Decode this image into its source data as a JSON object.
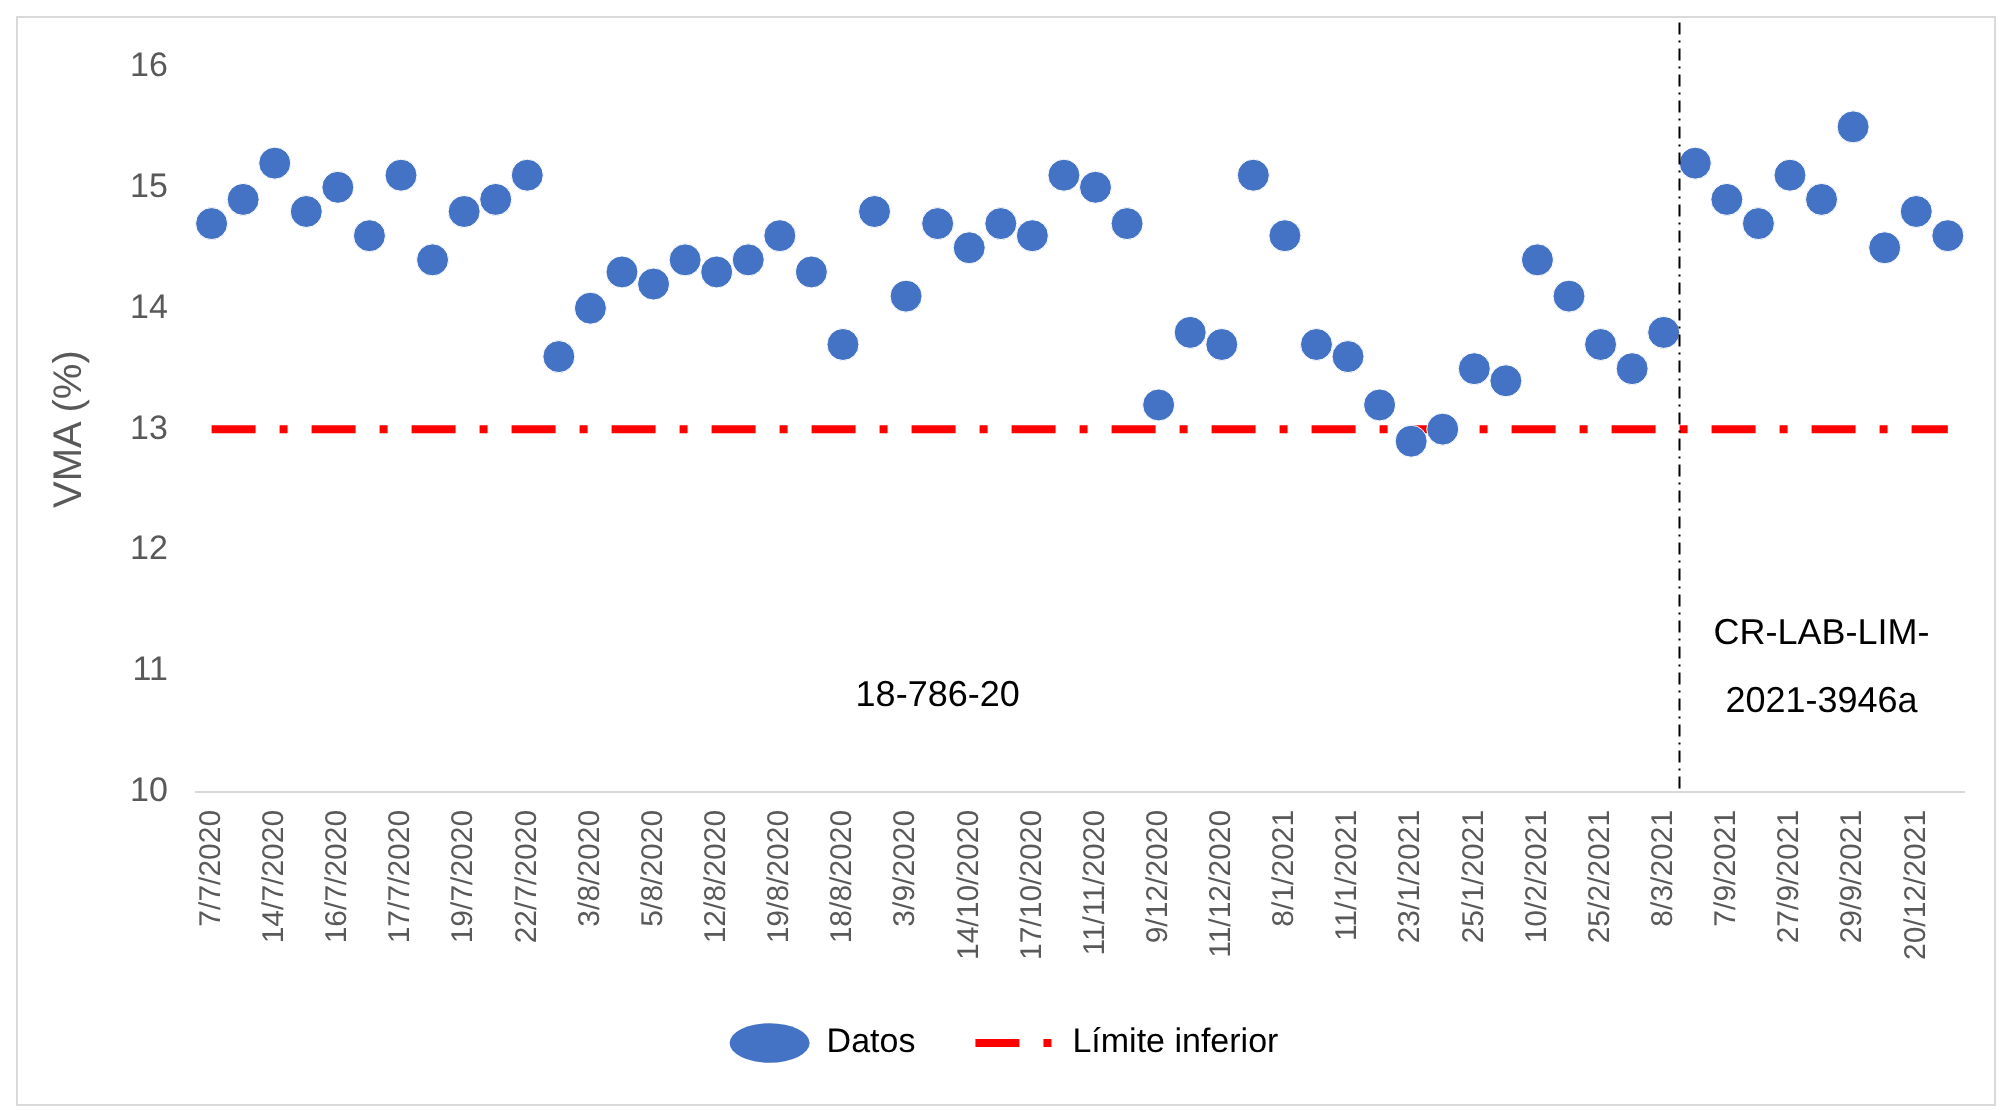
{
  "chart_data": {
    "type": "scatter",
    "ylabel": "VMA (%)",
    "categories": [
      "7/7/2020",
      null,
      "14/7/2020",
      null,
      "16/7/2020",
      null,
      "17/7/2020",
      null,
      "19/7/2020",
      null,
      "22/7/2020",
      null,
      "3/8/2020",
      null,
      "5/8/2020",
      null,
      "12/8/2020",
      null,
      "19/8/2020",
      null,
      "18/8/2020",
      null,
      "3/9/2020",
      null,
      "14/10/2020",
      null,
      "17/10/2020",
      null,
      "11/11/2020",
      null,
      "9/12/2020",
      null,
      "11/12/2020",
      null,
      "8/1/2021",
      null,
      "11/1/2021",
      null,
      "23/1/2021",
      null,
      "25/1/2021",
      null,
      "10/2/2021",
      null,
      "25/2/2021",
      null,
      "8/3/2021",
      null,
      "7/9/2021",
      null,
      "27/9/2021",
      null,
      "29/9/2021",
      null,
      "20/12/2021",
      null
    ],
    "series": [
      {
        "name": "Datos",
        "color": "#4472c4",
        "marker": "circle",
        "values": [
          14.7,
          14.9,
          15.2,
          14.8,
          15.0,
          14.6,
          15.1,
          14.4,
          14.8,
          14.9,
          15.1,
          13.6,
          14.0,
          14.3,
          14.2,
          14.4,
          14.3,
          14.4,
          14.6,
          14.3,
          13.7,
          14.8,
          14.1,
          14.7,
          14.5,
          14.7,
          14.6,
          15.1,
          15.0,
          14.7,
          13.2,
          13.8,
          13.7,
          15.1,
          14.6,
          13.7,
          13.6,
          13.2,
          12.9,
          13.0,
          13.5,
          13.4,
          14.4,
          14.1,
          13.7,
          13.5,
          13.8,
          15.2,
          14.9,
          14.7,
          15.1,
          14.9,
          15.5,
          14.5,
          14.8,
          14.6
        ]
      },
      {
        "name": "Límite inferior",
        "type": "line",
        "color": "#ff0000",
        "line_style": "dashed",
        "values": [
          13,
          13,
          13,
          13,
          13,
          13,
          13,
          13,
          13,
          13,
          13,
          13,
          13,
          13,
          13,
          13,
          13,
          13,
          13,
          13,
          13,
          13,
          13,
          13,
          13,
          13,
          13,
          13,
          13,
          13,
          13,
          13,
          13,
          13,
          13,
          13,
          13,
          13,
          13,
          13,
          13,
          13,
          13,
          13,
          13,
          13,
          13,
          13,
          13,
          13,
          13,
          13,
          13,
          13,
          13,
          13
        ]
      }
    ],
    "ylim": [
      10,
      16
    ],
    "yticks": [
      10,
      11,
      12,
      13,
      14,
      15,
      16
    ],
    "grid": false,
    "legend": "bottom",
    "annotations": [
      "18-786-20",
      "CR-LAB-LIM-2021-3946a"
    ]
  }
}
